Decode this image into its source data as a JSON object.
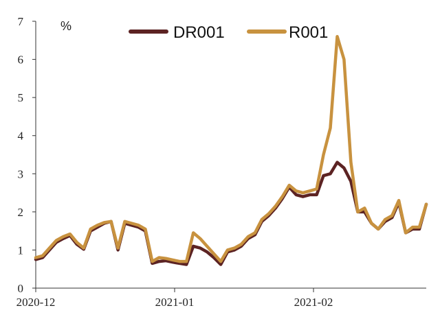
{
  "chart_data": {
    "type": "line",
    "unit_label": "%",
    "ylim": [
      0,
      7
    ],
    "yticks": [
      "0",
      "1",
      "2",
      "3",
      "4",
      "5",
      "6",
      "7"
    ],
    "xticks": [
      "2020-12",
      "2021-01",
      "2021-02"
    ],
    "legend_position": "top",
    "grid": false,
    "n_points": 58,
    "series": [
      {
        "name": "DR001",
        "color": "#5c2323",
        "values": [
          0.75,
          0.8,
          1.0,
          1.2,
          1.3,
          1.38,
          1.15,
          1.02,
          1.5,
          1.6,
          1.7,
          1.75,
          1.0,
          1.7,
          1.65,
          1.6,
          1.5,
          0.65,
          0.7,
          0.72,
          0.68,
          0.65,
          0.62,
          1.1,
          1.05,
          0.95,
          0.8,
          0.62,
          0.95,
          1.0,
          1.1,
          1.3,
          1.4,
          1.75,
          1.9,
          2.1,
          2.35,
          2.65,
          2.45,
          2.4,
          2.45,
          2.45,
          2.95,
          3.0,
          3.3,
          3.15,
          2.8,
          2.0,
          2.0,
          1.7,
          1.55,
          1.75,
          1.85,
          2.25,
          1.45,
          1.55,
          1.55,
          2.2
        ]
      },
      {
        "name": "R001",
        "color": "#c8923f",
        "values": [
          0.8,
          0.85,
          1.05,
          1.25,
          1.35,
          1.42,
          1.2,
          1.05,
          1.55,
          1.65,
          1.72,
          1.75,
          1.05,
          1.75,
          1.7,
          1.65,
          1.55,
          0.7,
          0.8,
          0.78,
          0.74,
          0.7,
          0.7,
          1.45,
          1.3,
          1.1,
          0.9,
          0.7,
          1.0,
          1.05,
          1.15,
          1.35,
          1.45,
          1.8,
          1.95,
          2.15,
          2.4,
          2.7,
          2.55,
          2.5,
          2.55,
          2.6,
          3.5,
          4.2,
          6.6,
          6.0,
          3.3,
          2.0,
          2.1,
          1.7,
          1.55,
          1.8,
          1.9,
          2.3,
          1.45,
          1.6,
          1.6,
          2.2
        ]
      }
    ]
  }
}
